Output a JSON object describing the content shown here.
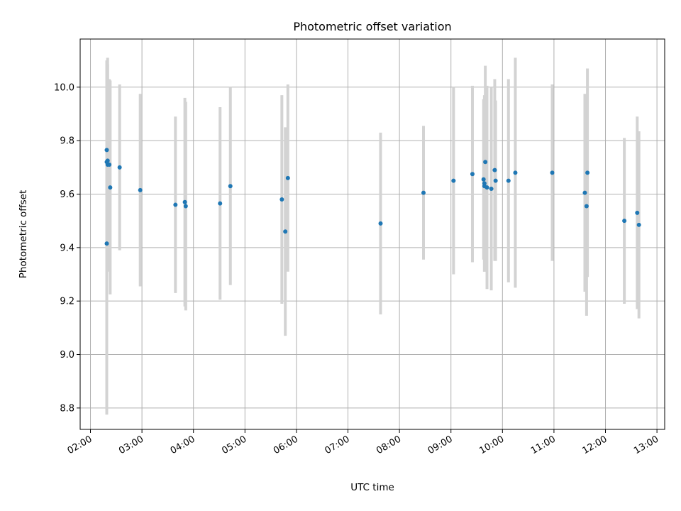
{
  "chart_data": {
    "type": "scatter",
    "title": "Photometric offset variation",
    "xlabel": "UTC time",
    "ylabel": "Photometric offset",
    "grid": true,
    "x_ticks": [
      "02:00",
      "03:00",
      "04:00",
      "05:00",
      "06:00",
      "07:00",
      "08:00",
      "09:00",
      "10:00",
      "11:00",
      "12:00",
      "13:00"
    ],
    "y_ticks": [
      "8.8",
      "9.0",
      "9.2",
      "9.4",
      "9.6",
      "9.8",
      "10.0"
    ],
    "xlim": [
      "01:48",
      "13:09"
    ],
    "ylim": [
      8.72,
      10.18
    ],
    "colors": {
      "point": "#1f77b4",
      "errorbar": "#d3d3d3",
      "grid": "#b0b0b0"
    },
    "series": [
      {
        "points": [
          {
            "x": "02:19",
            "y": 9.415,
            "err": 0.64
          },
          {
            "x": "02:19",
            "y": 9.765,
            "err": 0.29
          },
          {
            "x": "02:19",
            "y": 9.72,
            "err": 0.38
          },
          {
            "x": "02:20",
            "y": 9.71,
            "err": 0.4
          },
          {
            "x": "02:20",
            "y": 9.725,
            "err": 0.36
          },
          {
            "x": "02:22",
            "y": 9.71,
            "err": 0.32
          },
          {
            "x": "02:23",
            "y": 9.625,
            "err": 0.4
          },
          {
            "x": "02:34",
            "y": 9.7,
            "err": 0.31
          },
          {
            "x": "02:58",
            "y": 9.615,
            "err": 0.36
          },
          {
            "x": "03:39",
            "y": 9.56,
            "err": 0.33
          },
          {
            "x": "03:50",
            "y": 9.57,
            "err": 0.39
          },
          {
            "x": "03:51",
            "y": 9.555,
            "err": 0.39
          },
          {
            "x": "04:31",
            "y": 9.565,
            "err": 0.36
          },
          {
            "x": "04:43",
            "y": 9.63,
            "err": 0.37
          },
          {
            "x": "05:43",
            "y": 9.58,
            "err": 0.39
          },
          {
            "x": "05:47",
            "y": 9.46,
            "err": 0.39
          },
          {
            "x": "05:50",
            "y": 9.66,
            "err": 0.35
          },
          {
            "x": "07:38",
            "y": 9.49,
            "err": 0.34
          },
          {
            "x": "08:28",
            "y": 9.605,
            "err": 0.25
          },
          {
            "x": "09:03",
            "y": 9.65,
            "err": 0.35
          },
          {
            "x": "09:25",
            "y": 9.675,
            "err": 0.33
          },
          {
            "x": "09:38",
            "y": 9.655,
            "err": 0.3
          },
          {
            "x": "09:39",
            "y": 9.64,
            "err": 0.33
          },
          {
            "x": "09:39",
            "y": 9.63,
            "err": 0.32
          },
          {
            "x": "09:40",
            "y": 9.72,
            "err": 0.36
          },
          {
            "x": "09:42",
            "y": 9.625,
            "err": 0.38
          },
          {
            "x": "09:47",
            "y": 9.62,
            "err": 0.38
          },
          {
            "x": "09:51",
            "y": 9.69,
            "err": 0.34
          },
          {
            "x": "09:52",
            "y": 9.65,
            "err": 0.3
          },
          {
            "x": "10:07",
            "y": 9.65,
            "err": 0.38
          },
          {
            "x": "10:15",
            "y": 9.68,
            "err": 0.43
          },
          {
            "x": "10:58",
            "y": 9.68,
            "err": 0.33
          },
          {
            "x": "11:36",
            "y": 9.605,
            "err": 0.37
          },
          {
            "x": "11:38",
            "y": 9.555,
            "err": 0.41
          },
          {
            "x": "11:39",
            "y": 9.68,
            "err": 0.39
          },
          {
            "x": "12:22",
            "y": 9.5,
            "err": 0.31
          },
          {
            "x": "12:37",
            "y": 9.53,
            "err": 0.36
          },
          {
            "x": "12:39",
            "y": 9.485,
            "err": 0.35
          }
        ]
      }
    ]
  }
}
